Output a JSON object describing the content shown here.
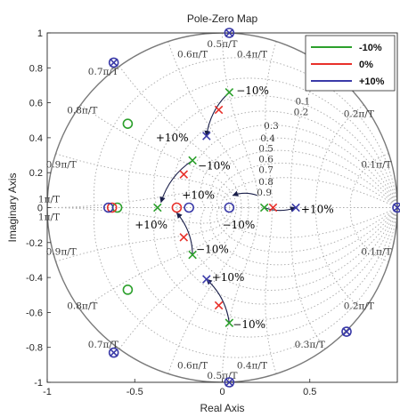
{
  "chart_data": {
    "type": "scatter",
    "title": "Pole-Zero Map",
    "xlabel": "Real Axis",
    "ylabel": "Imaginary Axis",
    "xlim": [
      -1,
      1
    ],
    "ylim": [
      -1,
      1
    ],
    "x_ticks": [
      {
        "value": -1,
        "label": "-1"
      },
      {
        "value": -0.5,
        "label": "-0.5"
      },
      {
        "value": 0,
        "label": "0"
      },
      {
        "value": 0.5,
        "label": "0.5"
      }
    ],
    "y_ticks": [
      {
        "value": 1,
        "label": "1"
      },
      {
        "value": 0.8,
        "label": "0.8"
      },
      {
        "value": 0.6,
        "label": "0.6"
      },
      {
        "value": 0.4,
        "label": "0.4"
      },
      {
        "value": 0.2,
        "label": "0.2"
      },
      {
        "value": 0,
        "label": "0"
      },
      {
        "value": -0.2,
        "label": "-0.2"
      },
      {
        "value": -0.4,
        "label": "-0.4"
      },
      {
        "value": -0.6,
        "label": "-0.6"
      },
      {
        "value": -0.8,
        "label": "-0.8"
      },
      {
        "value": -1,
        "label": "-1"
      }
    ],
    "grid": true,
    "unit_circle": true,
    "grid_zeta_values": [
      0.1,
      0.2,
      0.3,
      0.4,
      0.5,
      0.6,
      0.7,
      0.8,
      0.9
    ],
    "grid_zeta_labels": [
      {
        "text": "0.1",
        "x": 0.46,
        "y": 0.61
      },
      {
        "text": "0.2",
        "x": 0.45,
        "y": 0.55
      },
      {
        "text": "0.3",
        "x": 0.28,
        "y": 0.47
      },
      {
        "text": "0.4",
        "x": 0.26,
        "y": 0.4
      },
      {
        "text": "0.5",
        "x": 0.25,
        "y": 0.34
      },
      {
        "text": "0.6",
        "x": 0.25,
        "y": 0.28
      },
      {
        "text": "0.7",
        "x": 0.25,
        "y": 0.22
      },
      {
        "text": "0.8",
        "x": 0.25,
        "y": 0.15
      },
      {
        "text": "0.9",
        "x": 0.24,
        "y": 0.09
      }
    ],
    "grid_freq_labels": [
      {
        "text": "0.5π/T",
        "x": 0.0,
        "y": 0.94
      },
      {
        "text": "0.6π/T",
        "x": -0.17,
        "y": 0.88
      },
      {
        "text": "0.4π/T",
        "x": 0.17,
        "y": 0.88
      },
      {
        "text": "0.7π/T",
        "x": -0.68,
        "y": 0.78
      },
      {
        "text": "0.8π/T",
        "x": -0.8,
        "y": 0.56
      },
      {
        "text": "0.2π/T",
        "x": 0.78,
        "y": 0.54
      },
      {
        "text": "0.9π/T",
        "x": -0.92,
        "y": 0.25
      },
      {
        "text": "0.1π/T",
        "x": 0.88,
        "y": 0.25
      },
      {
        "text": "1π/T",
        "x": -0.99,
        "y": 0.05
      },
      {
        "text": "1π/T",
        "x": -0.99,
        "y": -0.05
      },
      {
        "text": "0.9π/T",
        "x": -0.92,
        "y": -0.25
      },
      {
        "text": "0.1π/T",
        "x": 0.88,
        "y": -0.25
      },
      {
        "text": "0.8π/T",
        "x": -0.8,
        "y": -0.56
      },
      {
        "text": "0.2π/T",
        "x": 0.78,
        "y": -0.56
      },
      {
        "text": "0.7π/T",
        "x": -0.68,
        "y": -0.78
      },
      {
        "text": "0.3π/T",
        "x": 0.5,
        "y": -0.78
      },
      {
        "text": "0.6π/T",
        "x": -0.17,
        "y": -0.9
      },
      {
        "text": "0.4π/T",
        "x": 0.17,
        "y": -0.9
      },
      {
        "text": "0.5π/T",
        "x": 0.0,
        "y": -0.96
      }
    ],
    "series": [
      {
        "name": "-10%",
        "color": "#2ca02c",
        "poles": [
          [
            0.04,
            0.66
          ],
          [
            0.04,
            -0.66
          ],
          [
            -0.17,
            0.27
          ],
          [
            -0.17,
            -0.27
          ],
          [
            0.24,
            0.0
          ],
          [
            -0.37,
            0.0
          ]
        ],
        "zeros": [
          [
            -0.54,
            0.48
          ],
          [
            -0.54,
            -0.47
          ],
          [
            -0.6,
            0.0
          ]
        ]
      },
      {
        "name": "0%",
        "color": "#e8302a",
        "poles": [
          [
            -0.02,
            0.56
          ],
          [
            -0.02,
            -0.56
          ],
          [
            -0.22,
            0.19
          ],
          [
            -0.22,
            -0.17
          ],
          [
            0.29,
            0.0
          ]
        ],
        "zeros": [
          [
            -0.63,
            0.0
          ],
          [
            -0.26,
            0.0
          ]
        ]
      },
      {
        "name": "+10%",
        "color": "#3a3aa8",
        "poles": [
          [
            -0.09,
            0.41
          ],
          [
            -0.09,
            -0.41
          ],
          [
            0.42,
            0.0
          ]
        ],
        "zeros": [
          [
            -0.65,
            0.0
          ],
          [
            -0.19,
            0.0
          ],
          [
            0.04,
            0.0
          ],
          [
            -0.62,
            0.83
          ],
          [
            -0.62,
            -0.83
          ],
          [
            0.71,
            0.71
          ],
          [
            0.71,
            -0.71
          ],
          [
            0.04,
            1.0
          ],
          [
            0.04,
            -1.0
          ],
          [
            1.0,
            0.0
          ]
        ],
        "poles_on_zeros": [
          [
            -0.62,
            0.83
          ],
          [
            -0.62,
            -0.83
          ],
          [
            0.71,
            0.71
          ],
          [
            0.71,
            -0.71
          ],
          [
            0.04,
            1.0
          ],
          [
            0.04,
            -1.0
          ],
          [
            1.0,
            0.0
          ]
        ]
      }
    ],
    "arrows": [
      {
        "from": [
          0.04,
          0.66
        ],
        "to": [
          -0.09,
          0.41
        ]
      },
      {
        "from": [
          0.04,
          -0.66
        ],
        "to": [
          -0.09,
          -0.41
        ]
      },
      {
        "from": [
          -0.17,
          0.27
        ],
        "to": [
          -0.35,
          0.03
        ]
      },
      {
        "from": [
          -0.17,
          -0.27
        ],
        "to": [
          -0.26,
          -0.03
        ]
      },
      {
        "from": [
          0.24,
          0.0
        ],
        "to": [
          0.42,
          0.0
        ]
      },
      {
        "from": [
          0.2,
          0.07
        ],
        "to": [
          0.06,
          0.07
        ]
      }
    ],
    "annotations": [
      {
        "text": "−10%",
        "x": 0.08,
        "y": 0.67
      },
      {
        "text": "+10%",
        "x": -0.38,
        "y": 0.4
      },
      {
        "text": "−10%",
        "x": -0.14,
        "y": 0.24
      },
      {
        "text": "+10%",
        "x": -0.23,
        "y": 0.07
      },
      {
        "text": "+10%",
        "x": -0.5,
        "y": -0.1
      },
      {
        "text": "−10%",
        "x": 0.0,
        "y": -0.1
      },
      {
        "text": "+10%",
        "x": 0.45,
        "y": -0.01
      },
      {
        "text": "−10%",
        "x": -0.15,
        "y": -0.24
      },
      {
        "text": "+10%",
        "x": -0.06,
        "y": -0.4
      },
      {
        "text": "−10%",
        "x": 0.06,
        "y": -0.67
      }
    ],
    "legend": {
      "position": "top-right",
      "entries": [
        {
          "label": "-10%",
          "color": "#2ca02c"
        },
        {
          "label": "0%",
          "color": "#e8302a"
        },
        {
          "label": "+10%",
          "color": "#3a3aa8"
        }
      ]
    }
  }
}
